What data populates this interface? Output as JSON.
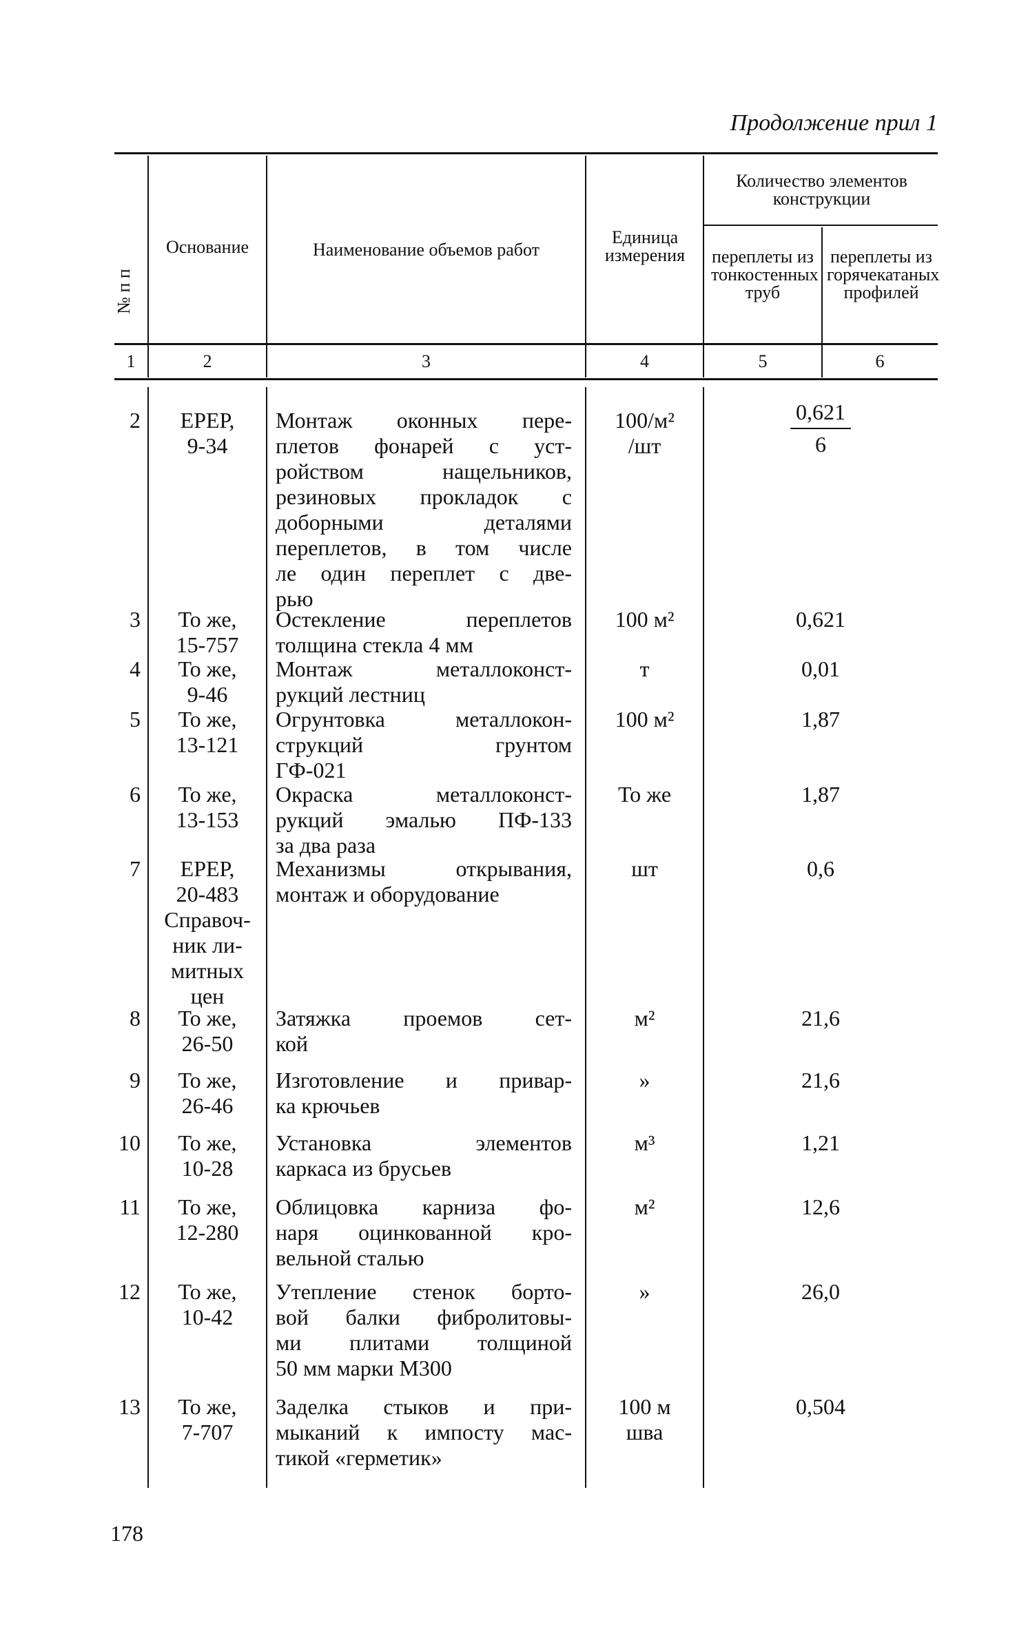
{
  "running_head": "Продолжение прил 1",
  "page_number": "178",
  "header": {
    "col1": "№ п п",
    "col2": "Основание",
    "col3": "Наименование объемов работ",
    "col4": "Единица измерения",
    "group": "Количество элементов конструкции",
    "col5": "переплеты из тонкостенных труб",
    "col6": "переплеты из горячекатаных профилей",
    "numbers": [
      "1",
      "2",
      "3",
      "4",
      "5",
      "6"
    ]
  },
  "rows": [
    {
      "num": "2",
      "base": [
        "ЕРЕР,",
        "9-34"
      ],
      "name": [
        "Монтаж оконных пере-",
        "плетов фонарей с уст-",
        "ройством нащельников,",
        "резиновых прокладок с",
        "доборными деталями",
        "переплетов, в том числе",
        "ле один переплет с две-",
        "рью"
      ],
      "unit": [
        "100/м²",
        "/шт"
      ],
      "qty": "0,621",
      "qty_den": "6"
    },
    {
      "num": "3",
      "base": [
        "То же,",
        "15-757"
      ],
      "name": [
        "Остекление переплетов",
        "толщина стекла 4 мм"
      ],
      "unit": [
        "100 м²"
      ],
      "qty": "0,621"
    },
    {
      "num": "4",
      "base": [
        "То же,",
        "9-46"
      ],
      "name": [
        "Монтаж металлоконст-",
        "рукций лестниц"
      ],
      "unit": [
        "т"
      ],
      "qty": "0,01"
    },
    {
      "num": "5",
      "base": [
        "То же,",
        "13-121"
      ],
      "name": [
        "Огрунтовка металлокон-",
        "струкций грунтом",
        "ГФ-021"
      ],
      "unit": [
        "100 м²"
      ],
      "qty": "1,87"
    },
    {
      "num": "6",
      "base": [
        "То же,",
        "13-153"
      ],
      "name": [
        "Окраска металлоконст-",
        "рукций эмалью ПФ-133",
        "за два раза"
      ],
      "unit": [
        "То же"
      ],
      "qty": "1,87"
    },
    {
      "num": "7",
      "base": [
        "ЕРЕР,",
        "20-483",
        "Справоч-",
        "ник ли-",
        "митных",
        "цен"
      ],
      "name": [
        "Механизмы открывания,",
        "монтаж и оборудование"
      ],
      "unit": [
        "шт"
      ],
      "qty": "0,6"
    },
    {
      "num": "8",
      "base": [
        "То же,",
        "26-50"
      ],
      "name": [
        "Затяжка проемов сет-",
        "кой"
      ],
      "unit": [
        "м²"
      ],
      "qty": "21,6"
    },
    {
      "num": "9",
      "base": [
        "То же,",
        "26-46"
      ],
      "name": [
        "Изготовление и привар-",
        "ка крючьев"
      ],
      "unit": [
        "»"
      ],
      "qty": "21,6"
    },
    {
      "num": "10",
      "base": [
        "То же,",
        "10-28"
      ],
      "name": [
        "Установка элементов",
        "каркаса из брусьев"
      ],
      "unit": [
        "м³"
      ],
      "qty": "1,21"
    },
    {
      "num": "11",
      "base": [
        "То же,",
        "12-280"
      ],
      "name": [
        "Облицовка карниза фо-",
        "наря оцинкованной кро-",
        "вельной сталью"
      ],
      "unit": [
        "м²"
      ],
      "qty": "12,6"
    },
    {
      "num": "12",
      "base": [
        "То же,",
        "10-42"
      ],
      "name": [
        "Утепление стенок борто-",
        "вой балки фибролитовы-",
        "ми плитами толщиной",
        "50 мм марки М300"
      ],
      "unit": [
        "»"
      ],
      "qty": "26,0"
    },
    {
      "num": "13",
      "base": [
        "То же,",
        "7-707"
      ],
      "name": [
        "Заделка стыков и при-",
        "мыканий к импосту мас-",
        "тикой «герметик»"
      ],
      "unit": [
        "100 м",
        "шва"
      ],
      "qty": "0,504"
    }
  ]
}
